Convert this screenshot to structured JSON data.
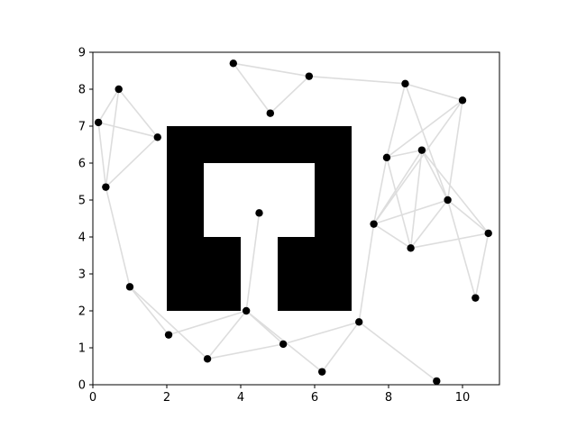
{
  "chart_data": {
    "type": "scatter",
    "title": "",
    "xlabel": "",
    "ylabel": "",
    "xlim": [
      0,
      11
    ],
    "ylim": [
      0,
      9
    ],
    "x_ticks": [
      "0",
      "2",
      "4",
      "6",
      "8",
      "10"
    ],
    "y_ticks": [
      "0",
      "1",
      "2",
      "3",
      "4",
      "5",
      "6",
      "7",
      "8",
      "9"
    ],
    "grid": false,
    "colors": {
      "points": "#000000",
      "edges": "#dddddd",
      "obstacle": "#000000",
      "background": "#ffffff"
    },
    "obstacle": {
      "outer": [
        [
          2,
          2
        ],
        [
          4,
          2
        ],
        [
          4,
          4
        ],
        [
          3,
          4
        ],
        [
          3,
          6
        ],
        [
          6,
          6
        ],
        [
          6,
          4
        ],
        [
          5,
          4
        ],
        [
          5,
          2
        ],
        [
          7,
          2
        ],
        [
          7,
          7
        ],
        [
          2,
          7
        ]
      ]
    },
    "points": [
      {
        "x": 0.15,
        "y": 7.1
      },
      {
        "x": 0.7,
        "y": 8.0
      },
      {
        "x": 0.35,
        "y": 5.35
      },
      {
        "x": 1.75,
        "y": 6.7
      },
      {
        "x": 3.8,
        "y": 8.7
      },
      {
        "x": 4.8,
        "y": 7.35
      },
      {
        "x": 5.85,
        "y": 8.35
      },
      {
        "x": 8.45,
        "y": 8.15
      },
      {
        "x": 10.0,
        "y": 7.7
      },
      {
        "x": 8.9,
        "y": 6.35
      },
      {
        "x": 7.95,
        "y": 6.15
      },
      {
        "x": 9.6,
        "y": 5.0
      },
      {
        "x": 7.6,
        "y": 4.35
      },
      {
        "x": 10.7,
        "y": 4.1
      },
      {
        "x": 8.6,
        "y": 3.7
      },
      {
        "x": 4.5,
        "y": 4.65
      },
      {
        "x": 1.0,
        "y": 2.65
      },
      {
        "x": 10.35,
        "y": 2.35
      },
      {
        "x": 4.15,
        "y": 2.0
      },
      {
        "x": 7.2,
        "y": 1.7
      },
      {
        "x": 2.05,
        "y": 1.35
      },
      {
        "x": 5.15,
        "y": 1.1
      },
      {
        "x": 3.1,
        "y": 0.7
      },
      {
        "x": 6.2,
        "y": 0.35
      },
      {
        "x": 9.3,
        "y": 0.1
      }
    ],
    "edges": [
      [
        0,
        1
      ],
      [
        0,
        2
      ],
      [
        0,
        3
      ],
      [
        1,
        2
      ],
      [
        1,
        3
      ],
      [
        2,
        3
      ],
      [
        4,
        5
      ],
      [
        4,
        6
      ],
      [
        5,
        6
      ],
      [
        6,
        7
      ],
      [
        7,
        8
      ],
      [
        7,
        10
      ],
      [
        7,
        11
      ],
      [
        8,
        10
      ],
      [
        8,
        11
      ],
      [
        8,
        12
      ],
      [
        9,
        10
      ],
      [
        9,
        11
      ],
      [
        9,
        12
      ],
      [
        9,
        13
      ],
      [
        9,
        14
      ],
      [
        10,
        12
      ],
      [
        10,
        14
      ],
      [
        11,
        12
      ],
      [
        11,
        13
      ],
      [
        11,
        17
      ],
      [
        11,
        14
      ],
      [
        12,
        14
      ],
      [
        12,
        19
      ],
      [
        13,
        14
      ],
      [
        13,
        17
      ],
      [
        2,
        16
      ],
      [
        16,
        20
      ],
      [
        16,
        22
      ],
      [
        20,
        18
      ],
      [
        22,
        18
      ],
      [
        15,
        18
      ],
      [
        18,
        21
      ],
      [
        18,
        23
      ],
      [
        21,
        22
      ],
      [
        21,
        19
      ],
      [
        19,
        23
      ],
      [
        19,
        24
      ]
    ]
  }
}
